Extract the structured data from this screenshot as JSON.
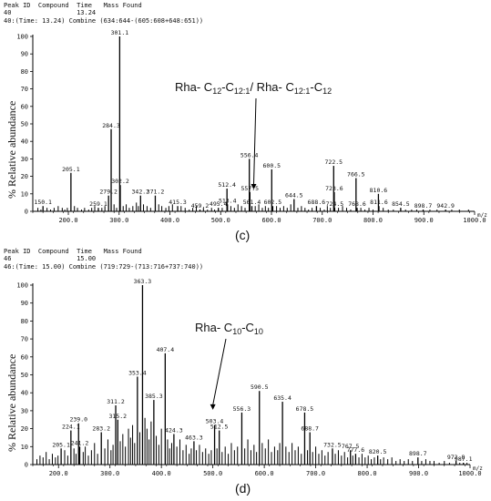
{
  "chart_data": [
    {
      "type": "bar",
      "panel_caption": "(c)",
      "header": {
        "col_labels": "Peak ID  Compound  Time   Mass Found",
        "col_values": "40                 13.24",
        "scan_line": "40:(Time: 13.24) Combine (634:644-(605:608+648:651))"
      },
      "ylabel": "% Relative abundance",
      "xlabel": "m/z",
      "xlim": [
        130,
        1000
      ],
      "ylim": [
        0,
        100
      ],
      "x_ticks": [
        200.0,
        300.0,
        400.0,
        500.0,
        600.0,
        700.0,
        800.0,
        900.0,
        1000.0
      ],
      "y_ticks": [
        0,
        10,
        20,
        30,
        40,
        50,
        60,
        70,
        80,
        90,
        100
      ],
      "annotation": {
        "prefix": "Rha- C",
        "s1": "12",
        "mid": "-C",
        "s2": "12:1",
        "sep": "/ Rha- C",
        "s3": "12:1",
        "mid2": "-C",
        "s4": "12",
        "x": 565,
        "y": 12
      },
      "peaks": [
        {
          "x": 150.1,
          "y": 3,
          "label": "150.1"
        },
        {
          "x": 205.1,
          "y": 22,
          "label": "205.1"
        },
        {
          "x": 259.1,
          "y": 2,
          "label": "259.1"
        },
        {
          "x": 279.2,
          "y": 9,
          "label": "279.2"
        },
        {
          "x": 284.3,
          "y": 47,
          "label": "284.3"
        },
        {
          "x": 301.1,
          "y": 100,
          "label": "301.1"
        },
        {
          "x": 302.2,
          "y": 15,
          "label": "302.2"
        },
        {
          "x": 342.2,
          "y": 9,
          "label": "342.2"
        },
        {
          "x": 371.2,
          "y": 9,
          "label": "371.2"
        },
        {
          "x": 415.3,
          "y": 3,
          "label": "415.3"
        },
        {
          "x": 459.2,
          "y": 1,
          "label": "459.2"
        },
        {
          "x": 495.4,
          "y": 2,
          "label": "495.4"
        },
        {
          "x": 512.4,
          "y": 13,
          "label": "512.4"
        },
        {
          "x": 513.4,
          "y": 4,
          "label": "513.4"
        },
        {
          "x": 556.4,
          "y": 30,
          "label": "556.4"
        },
        {
          "x": 557.5,
          "y": 11,
          "label": "557.5"
        },
        {
          "x": 561.4,
          "y": 3,
          "label": "561.4"
        },
        {
          "x": 600.5,
          "y": 24,
          "label": "600.5"
        },
        {
          "x": 602.5,
          "y": 3,
          "label": "602.5"
        },
        {
          "x": 644.5,
          "y": 7,
          "label": "644.5"
        },
        {
          "x": 688.6,
          "y": 3,
          "label": "688.6"
        },
        {
          "x": 722.5,
          "y": 26,
          "label": "722.5"
        },
        {
          "x": 723.6,
          "y": 11,
          "label": "723.6"
        },
        {
          "x": 724.5,
          "y": 2,
          "label": "724.5"
        },
        {
          "x": 766.5,
          "y": 19,
          "label": "766.5"
        },
        {
          "x": 768.6,
          "y": 2,
          "label": "768.6"
        },
        {
          "x": 810.6,
          "y": 10,
          "label": "810.6"
        },
        {
          "x": 811.6,
          "y": 3,
          "label": "811.6"
        },
        {
          "x": 854.5,
          "y": 2,
          "label": "854.5"
        },
        {
          "x": 898.7,
          "y": 1,
          "label": "898.7"
        },
        {
          "x": 942.9,
          "y": 1,
          "label": "942.9"
        }
      ],
      "minor_peaks": [
        [
          140,
          2
        ],
        [
          146,
          1
        ],
        [
          158,
          2
        ],
        [
          165,
          1
        ],
        [
          172,
          2
        ],
        [
          180,
          3
        ],
        [
          188,
          2
        ],
        [
          193,
          1
        ],
        [
          198,
          2
        ],
        [
          212,
          3
        ],
        [
          218,
          2
        ],
        [
          226,
          1
        ],
        [
          232,
          2
        ],
        [
          240,
          1
        ],
        [
          246,
          2
        ],
        [
          252,
          3
        ],
        [
          266,
          2
        ],
        [
          272,
          3
        ],
        [
          290,
          4
        ],
        [
          295,
          2
        ],
        [
          308,
          3
        ],
        [
          314,
          4
        ],
        [
          320,
          2
        ],
        [
          327,
          3
        ],
        [
          334,
          5
        ],
        [
          338,
          3
        ],
        [
          348,
          4
        ],
        [
          355,
          3
        ],
        [
          362,
          2
        ],
        [
          378,
          4
        ],
        [
          384,
          3
        ],
        [
          392,
          2
        ],
        [
          398,
          3
        ],
        [
          405,
          4
        ],
        [
          422,
          3
        ],
        [
          430,
          2
        ],
        [
          438,
          1
        ],
        [
          445,
          2
        ],
        [
          452,
          3
        ],
        [
          466,
          2
        ],
        [
          474,
          1
        ],
        [
          482,
          2
        ],
        [
          488,
          1
        ],
        [
          503,
          2
        ],
        [
          520,
          3
        ],
        [
          527,
          2
        ],
        [
          534,
          4
        ],
        [
          541,
          3
        ],
        [
          548,
          2
        ],
        [
          568,
          3
        ],
        [
          575,
          4
        ],
        [
          582,
          2
        ],
        [
          588,
          3
        ],
        [
          594,
          2
        ],
        [
          610,
          3
        ],
        [
          617,
          2
        ],
        [
          624,
          3
        ],
        [
          631,
          2
        ],
        [
          638,
          4
        ],
        [
          652,
          2
        ],
        [
          659,
          3
        ],
        [
          666,
          2
        ],
        [
          673,
          1
        ],
        [
          680,
          2
        ],
        [
          696,
          2
        ],
        [
          704,
          1
        ],
        [
          710,
          3
        ],
        [
          716,
          2
        ],
        [
          732,
          2
        ],
        [
          740,
          3
        ],
        [
          748,
          2
        ],
        [
          756,
          1
        ],
        [
          776,
          2
        ],
        [
          784,
          1
        ],
        [
          792,
          2
        ],
        [
          800,
          1
        ],
        [
          820,
          2
        ],
        [
          830,
          1
        ],
        [
          840,
          1
        ],
        [
          864,
          1
        ],
        [
          876,
          1
        ],
        [
          886,
          1
        ],
        [
          912,
          1
        ],
        [
          926,
          1
        ],
        [
          955,
          1
        ],
        [
          970,
          1
        ],
        [
          988,
          1
        ]
      ]
    },
    {
      "type": "bar",
      "panel_caption": "(d)",
      "header": {
        "col_labels": "Peak ID  Compound  Time   Mass Found",
        "col_values": "46                 15.00",
        "scan_line": "46:(Time: 15.00) Combine (719:729-(713:716+737:740))"
      },
      "ylabel": "% Relative abundance",
      "xlabel": "m/z",
      "xlim": [
        150,
        1000
      ],
      "ylim": [
        0,
        100
      ],
      "x_ticks": [
        200.0,
        300.0,
        400.0,
        500.0,
        600.0,
        700.0,
        800.0,
        900.0,
        1000.0
      ],
      "y_ticks": [
        0,
        10,
        20,
        30,
        40,
        50,
        60,
        70,
        80,
        90,
        100
      ],
      "annotation": {
        "prefix": "Rha- C",
        "s1": "10",
        "mid": "-C",
        "s2": "10",
        "x": 500,
        "y": 30
      },
      "peaks": [
        {
          "x": 205.1,
          "y": 9,
          "label": "205.1"
        },
        {
          "x": 224.1,
          "y": 19,
          "label": "224.1"
        },
        {
          "x": 239.0,
          "y": 23,
          "label": "239.0"
        },
        {
          "x": 241.2,
          "y": 10,
          "label": "241.2"
        },
        {
          "x": 283.2,
          "y": 18,
          "label": "283.2"
        },
        {
          "x": 311.2,
          "y": 33,
          "label": "311.2"
        },
        {
          "x": 315.2,
          "y": 25,
          "label": "315.2"
        },
        {
          "x": 353.4,
          "y": 49,
          "label": "353.4"
        },
        {
          "x": 363.3,
          "y": 100,
          "label": "363.3"
        },
        {
          "x": 385.3,
          "y": 36,
          "label": "385.3"
        },
        {
          "x": 407.4,
          "y": 62,
          "label": "407.4"
        },
        {
          "x": 424.3,
          "y": 17,
          "label": "424.3"
        },
        {
          "x": 463.3,
          "y": 13,
          "label": "463.3"
        },
        {
          "x": 503.4,
          "y": 22,
          "label": "503.4"
        },
        {
          "x": 512.5,
          "y": 19,
          "label": "512.5"
        },
        {
          "x": 556.3,
          "y": 29,
          "label": "556.3"
        },
        {
          "x": 590.5,
          "y": 41,
          "label": "590.5"
        },
        {
          "x": 635.4,
          "y": 35,
          "label": "635.4"
        },
        {
          "x": 678.5,
          "y": 29,
          "label": "678.5"
        },
        {
          "x": 688.7,
          "y": 18,
          "label": "688.7"
        },
        {
          "x": 732.5,
          "y": 9,
          "label": "732.5"
        },
        {
          "x": 767.5,
          "y": 8,
          "label": "767.5"
        },
        {
          "x": 777.6,
          "y": 6,
          "label": "777.6"
        },
        {
          "x": 820.5,
          "y": 5,
          "label": "820.5"
        },
        {
          "x": 898.7,
          "y": 4,
          "label": "898.7"
        },
        {
          "x": 972.8,
          "y": 2,
          "label": "972.8"
        },
        {
          "x": 987.1,
          "y": 1,
          "label": "987.1"
        }
      ],
      "minor_peaks": [
        [
          158,
          3
        ],
        [
          164,
          5
        ],
        [
          170,
          4
        ],
        [
          176,
          7
        ],
        [
          182,
          3
        ],
        [
          188,
          6
        ],
        [
          194,
          4
        ],
        [
          199,
          5
        ],
        [
          212,
          8
        ],
        [
          218,
          5
        ],
        [
          230,
          9
        ],
        [
          234,
          6
        ],
        [
          248,
          7
        ],
        [
          252,
          10
        ],
        [
          258,
          5
        ],
        [
          264,
          8
        ],
        [
          270,
          12
        ],
        [
          276,
          6
        ],
        [
          290,
          9
        ],
        [
          296,
          14
        ],
        [
          302,
          8
        ],
        [
          306,
          11
        ],
        [
          320,
          13
        ],
        [
          325,
          17
        ],
        [
          330,
          10
        ],
        [
          336,
          20
        ],
        [
          340,
          15
        ],
        [
          344,
          22
        ],
        [
          348,
          12
        ],
        [
          358,
          18
        ],
        [
          368,
          26
        ],
        [
          372,
          20
        ],
        [
          376,
          14
        ],
        [
          380,
          24
        ],
        [
          390,
          16
        ],
        [
          395,
          11
        ],
        [
          400,
          20
        ],
        [
          412,
          14
        ],
        [
          416,
          9
        ],
        [
          420,
          12
        ],
        [
          430,
          10
        ],
        [
          436,
          14
        ],
        [
          442,
          8
        ],
        [
          448,
          11
        ],
        [
          454,
          6
        ],
        [
          458,
          9
        ],
        [
          468,
          8
        ],
        [
          474,
          11
        ],
        [
          480,
          7
        ],
        [
          486,
          9
        ],
        [
          492,
          6
        ],
        [
          497,
          8
        ],
        [
          508,
          9
        ],
        [
          518,
          7
        ],
        [
          524,
          10
        ],
        [
          530,
          6
        ],
        [
          536,
          12
        ],
        [
          542,
          8
        ],
        [
          548,
          10
        ],
        [
          562,
          9
        ],
        [
          568,
          14
        ],
        [
          574,
          8
        ],
        [
          580,
          11
        ],
        [
          585,
          7
        ],
        [
          596,
          12
        ],
        [
          602,
          9
        ],
        [
          608,
          14
        ],
        [
          614,
          7
        ],
        [
          620,
          10
        ],
        [
          626,
          8
        ],
        [
          630,
          12
        ],
        [
          642,
          10
        ],
        [
          648,
          7
        ],
        [
          654,
          12
        ],
        [
          660,
          8
        ],
        [
          666,
          10
        ],
        [
          672,
          6
        ],
        [
          684,
          8
        ],
        [
          694,
          7
        ],
        [
          700,
          10
        ],
        [
          706,
          6
        ],
        [
          712,
          8
        ],
        [
          718,
          5
        ],
        [
          724,
          7
        ],
        [
          738,
          6
        ],
        [
          744,
          8
        ],
        [
          750,
          5
        ],
        [
          756,
          7
        ],
        [
          762,
          4
        ],
        [
          772,
          5
        ],
        [
          784,
          4
        ],
        [
          790,
          6
        ],
        [
          796,
          4
        ],
        [
          802,
          5
        ],
        [
          808,
          3
        ],
        [
          814,
          4
        ],
        [
          826,
          3
        ],
        [
          832,
          4
        ],
        [
          840,
          3
        ],
        [
          848,
          4
        ],
        [
          856,
          2
        ],
        [
          864,
          3
        ],
        [
          872,
          2
        ],
        [
          880,
          3
        ],
        [
          888,
          2
        ],
        [
          906,
          2
        ],
        [
          914,
          3
        ],
        [
          922,
          2
        ],
        [
          930,
          2
        ],
        [
          940,
          1
        ],
        [
          950,
          2
        ],
        [
          960,
          1
        ],
        [
          980,
          1
        ],
        [
          994,
          1
        ]
      ]
    }
  ]
}
